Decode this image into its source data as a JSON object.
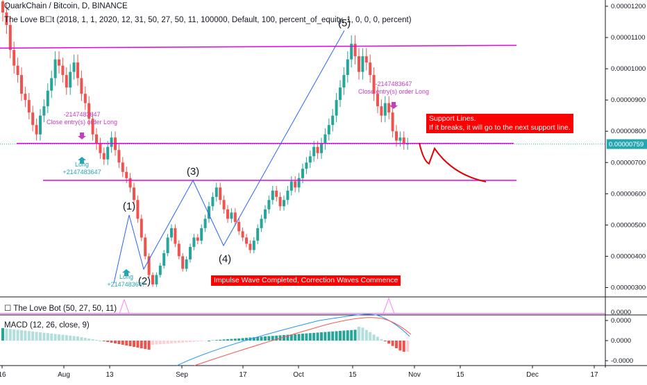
{
  "header": {
    "symbol_line": "QuarkChain / Bitcoin, D, BINANCE",
    "strategy_line": "The Love B☐t (2018, 1, 1, 2020, 12, 31, 50, 27, 50, 11, 100000, Default, 100, percent_of_equity, 1, 0, 0, 0, percent)"
  },
  "indicator_pane": {
    "label": "☐ The Love Bot (50, 27, 50, 11)"
  },
  "macd_pane": {
    "label": "MACD (12, 26, close, 9)"
  },
  "colors": {
    "up": "#26a69a",
    "down": "#ef5350",
    "magenta": "#e600e6",
    "annotation": "#ff0000",
    "signal": "#2bb3b3"
  },
  "chart_data": {
    "type": "candlestick",
    "y_axis": {
      "range": [
        2.7e-06,
        1.22e-05
      ],
      "ticks": [
        "0.00001200",
        "0.00001100",
        "0.00001000",
        "0.00000900",
        "0.00000800",
        "0.00000700",
        "0.00000600",
        "0.00000500",
        "0.00000400",
        "0.00000300"
      ],
      "tick_values": [
        1.2e-05,
        1.1e-05,
        1e-05,
        9e-06,
        8e-06,
        7e-06,
        6e-06,
        5e-06,
        4e-06,
        3e-06
      ],
      "last_price_label": "0.00000759",
      "last_price": 7.59e-06
    },
    "x_axis": {
      "labels": [
        "16",
        "Aug",
        "13",
        "Sep",
        "17",
        "Oct",
        "15",
        "Nov",
        "15",
        "Dec",
        "17"
      ]
    },
    "candles_close": [
      1.18e-05,
      1.14e-05,
      1.06e-05,
      1.01e-05,
      9.8e-06,
      9.2e-06,
      9e-06,
      8.6e-06,
      8.2e-06,
      7.9e-06,
      8.5e-06,
      8.8e-06,
      9.3e-06,
      9.7e-06,
      1.03e-05,
      1.01e-05,
      9.8e-06,
      9.4e-06,
      9.9e-06,
      1.02e-05,
      9.7e-06,
      9.2e-06,
      8.9e-06,
      8.4e-06,
      7.9e-06,
      7.6e-06,
      7.3e-06,
      7.1e-06,
      7.5e-06,
      7.8e-06,
      7.4e-06,
      7e-06,
      6.7e-06,
      6.5e-06,
      6.2e-06,
      5.8e-06,
      5.2e-06,
      4.6e-06,
      4e-06,
      3.4e-06,
      3.1e-06,
      3.4e-06,
      3.7e-06,
      4.1e-06,
      4.6e-06,
      4.9e-06,
      4.4e-06,
      4e-06,
      3.6e-06,
      3.9e-06,
      4.3e-06,
      4.6e-06,
      4.5e-06,
      4.9e-06,
      5.2e-06,
      5.6e-06,
      5.9e-06,
      6.2e-06,
      5.8e-06,
      5.5e-06,
      5.2e-06,
      5.4e-06,
      5.1e-06,
      4.8e-06,
      4.6e-06,
      4.4e-06,
      4.2e-06,
      4.5e-06,
      4.9e-06,
      5.2e-06,
      5.5e-06,
      5.8e-06,
      6.1e-06,
      5.9e-06,
      5.6e-06,
      5.8e-06,
      6.1e-06,
      6.4e-06,
      6.2e-06,
      6.5e-06,
      6.8e-06,
      7e-06,
      7.2e-06,
      7.5e-06,
      7.3e-06,
      7.6e-06,
      7.9e-06,
      8.2e-06,
      8.5e-06,
      9e-06,
      9.4e-06,
      9.8e-06,
      1.03e-05,
      1.08e-05,
      1.04e-05,
      9.9e-06,
      1.04e-05,
      1.02e-05,
      9.8e-06,
      9.2e-06,
      8.8e-06,
      8.5e-06,
      8.9e-06,
      8.6e-06,
      8e-06,
      7.7e-06,
      7.8e-06,
      7.6e-06,
      7.6e-06
    ],
    "support_lines": [
      1.075e-05,
      7.61e-06,
      6.43e-06
    ],
    "wave_labels": [
      {
        "label": "(1)",
        "value": 5.2e-06
      },
      {
        "label": "(2)",
        "value": 3.5e-06
      },
      {
        "label": "(3)",
        "value": 6.3e-06
      },
      {
        "label": "(4)",
        "value": 4.2e-06
      },
      {
        "label": "(5)",
        "value": 1.11e-05
      }
    ],
    "signals": [
      {
        "lines": [
          "-2147483647",
          "Close entry(s) order Long"
        ],
        "side": "sell"
      },
      {
        "lines": [
          "Long",
          "+2147483647"
        ],
        "side": "buy"
      },
      {
        "lines": [
          "Long",
          "+2147483647"
        ],
        "side": "buy"
      },
      {
        "lines": [
          "-2147483647",
          "Close entry(s) order Long"
        ],
        "side": "sell"
      }
    ],
    "annotations": [
      {
        "lines": [
          "Support Lines.",
          "If it breaks, it will go to the next support line."
        ]
      },
      {
        "lines": [
          "Impulse Wave Completed, Correction Waves Commence"
        ]
      }
    ],
    "indicator_scale": {
      "ticks": [
        "0.0000"
      ]
    },
    "macd_scale": {
      "ticks": [
        "0.0000",
        "0.0000",
        "-0.0000"
      ]
    }
  }
}
